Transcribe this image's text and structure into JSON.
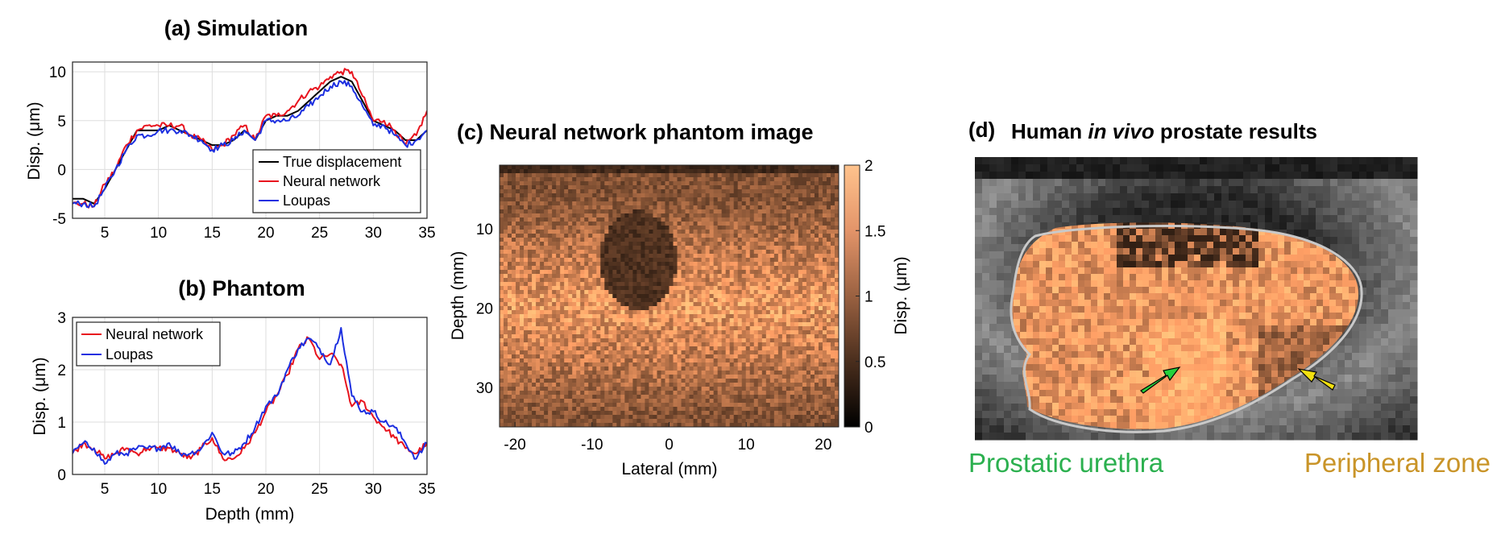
{
  "panels": {
    "a": {
      "title": "(a) Simulation",
      "ylabel": "Disp. (μm)",
      "xticks": [
        "5",
        "10",
        "15",
        "20",
        "25",
        "30",
        "35"
      ],
      "yticks": [
        "10",
        "5",
        "0",
        "-5"
      ],
      "legend": [
        "True displacement",
        "Neural network",
        "Loupas"
      ]
    },
    "b": {
      "title": "(b) Phantom",
      "ylabel": "Disp. (μm)",
      "xlabel": "Depth (mm)",
      "xticks": [
        "5",
        "10",
        "15",
        "20",
        "25",
        "30",
        "35"
      ],
      "yticks": [
        "3",
        "2",
        "1",
        "0"
      ],
      "legend": [
        "Neural network",
        "Loupas"
      ]
    },
    "c": {
      "title": "(c) Neural network phantom image",
      "xlabel": "Lateral (mm)",
      "ylabel": "Depth (mm)",
      "xticks": [
        "-20",
        "-10",
        "0",
        "10",
        "20"
      ],
      "yticks": [
        "10",
        "20",
        "30"
      ],
      "colorbar_label": "Disp. (μm)",
      "colorbar_ticks": [
        "2",
        "1.5",
        "1",
        "0.5",
        "0"
      ]
    },
    "d": {
      "label": "(d)",
      "title_pre": "Human ",
      "title_em": "in vivo",
      "title_post": " prostate results",
      "left_annotation": "Prostatic urethra",
      "right_annotation": "Peripheral zone"
    }
  },
  "colors": {
    "true_displacement": "#000000",
    "neural_network": "#e8141e",
    "loupas": "#1c2fe0",
    "urethra_annotation": "#2bb04f",
    "peripheral_annotation": "#c99428",
    "green_arrow": "#26d13c",
    "yellow_arrow": "#f2e00f",
    "copper_colormap_max": "#ffc38d"
  },
  "chart_data": [
    {
      "type": "line",
      "title": "(a) Simulation",
      "ylabel": "Disp. (μm)",
      "xlim": [
        2,
        35
      ],
      "ylim": [
        -5,
        11
      ],
      "grid": true,
      "legend_position": "bottom-right",
      "x": [
        2,
        3,
        4,
        5,
        6,
        7,
        8,
        9,
        10,
        11,
        12,
        13,
        14,
        15,
        16,
        17,
        18,
        19,
        20,
        21,
        22,
        23,
        24,
        25,
        26,
        27,
        28,
        29,
        30,
        31,
        32,
        33,
        34,
        35
      ],
      "series": [
        {
          "name": "True displacement",
          "values": [
            -3,
            -3,
            -3.5,
            -2,
            0,
            2,
            4,
            4,
            4,
            4.5,
            4,
            3.5,
            3,
            2.5,
            2.5,
            3,
            4,
            3,
            5,
            5.5,
            5.5,
            6,
            7,
            8,
            9,
            9.5,
            9,
            7,
            5,
            4.5,
            4,
            3,
            3,
            4
          ]
        },
        {
          "name": "Neural network",
          "values": [
            -3.5,
            -3.5,
            -3.8,
            -1.5,
            0,
            2.5,
            4,
            4.5,
            4.5,
            4.5,
            4.5,
            3.5,
            3,
            2,
            2.5,
            3.5,
            4.5,
            3,
            5.5,
            5.5,
            6,
            7,
            8,
            8.5,
            9.5,
            10,
            10,
            7.5,
            5,
            5,
            4,
            2.5,
            3.5,
            6
          ]
        },
        {
          "name": "Loupas",
          "values": [
            -3.5,
            -3.5,
            -3.8,
            -2,
            0,
            2,
            3.5,
            3.5,
            4,
            4,
            4,
            3.5,
            3,
            2,
            2.5,
            3,
            4,
            3,
            5,
            5,
            5,
            5.5,
            6.5,
            7.5,
            8.5,
            9,
            8.5,
            6.5,
            4.5,
            4.5,
            3.5,
            2.5,
            3,
            4
          ]
        }
      ]
    },
    {
      "type": "line",
      "title": "(b) Phantom",
      "xlabel": "Depth (mm)",
      "ylabel": "Disp. (μm)",
      "xlim": [
        2,
        35
      ],
      "ylim": [
        0,
        3
      ],
      "grid": true,
      "legend_position": "top-left",
      "x": [
        2,
        3,
        4,
        5,
        6,
        7,
        8,
        9,
        10,
        11,
        12,
        13,
        14,
        15,
        16,
        17,
        18,
        19,
        20,
        21,
        22,
        23,
        24,
        25,
        26,
        27,
        28,
        29,
        30,
        31,
        32,
        33,
        34,
        35
      ],
      "series": [
        {
          "name": "Neural network",
          "values": [
            0.4,
            0.6,
            0.5,
            0.3,
            0.4,
            0.5,
            0.4,
            0.5,
            0.5,
            0.5,
            0.4,
            0.3,
            0.5,
            0.7,
            0.3,
            0.3,
            0.5,
            0.8,
            1.2,
            1.5,
            1.9,
            2.4,
            2.6,
            2.2,
            2.3,
            2.1,
            1.3,
            1.4,
            1.1,
            0.9,
            0.7,
            0.5,
            0.4,
            0.6
          ]
        },
        {
          "name": "Loupas",
          "values": [
            0.4,
            0.6,
            0.5,
            0.2,
            0.4,
            0.4,
            0.5,
            0.5,
            0.5,
            0.6,
            0.4,
            0.4,
            0.5,
            0.8,
            0.4,
            0.4,
            0.6,
            0.9,
            1.3,
            1.5,
            2.0,
            2.4,
            2.6,
            2.4,
            2.1,
            2.8,
            1.5,
            1.2,
            1.2,
            1.0,
            0.9,
            0.6,
            0.3,
            0.6
          ]
        }
      ]
    },
    {
      "type": "heatmap",
      "title": "(c) Neural network phantom image",
      "xlabel": "Lateral (mm)",
      "ylabel": "Depth (mm)",
      "xlim": [
        -22,
        22
      ],
      "ylim": [
        35,
        2
      ],
      "colorbar": {
        "label": "Disp. (μm)",
        "range": [
          0,
          2
        ],
        "colormap": "copper"
      },
      "inclusion": {
        "center_lateral_mm": -4,
        "center_depth_mm": 14,
        "radius_mm": 5,
        "disp_um": 0.5
      },
      "background_disp_um": 1.5
    }
  ]
}
